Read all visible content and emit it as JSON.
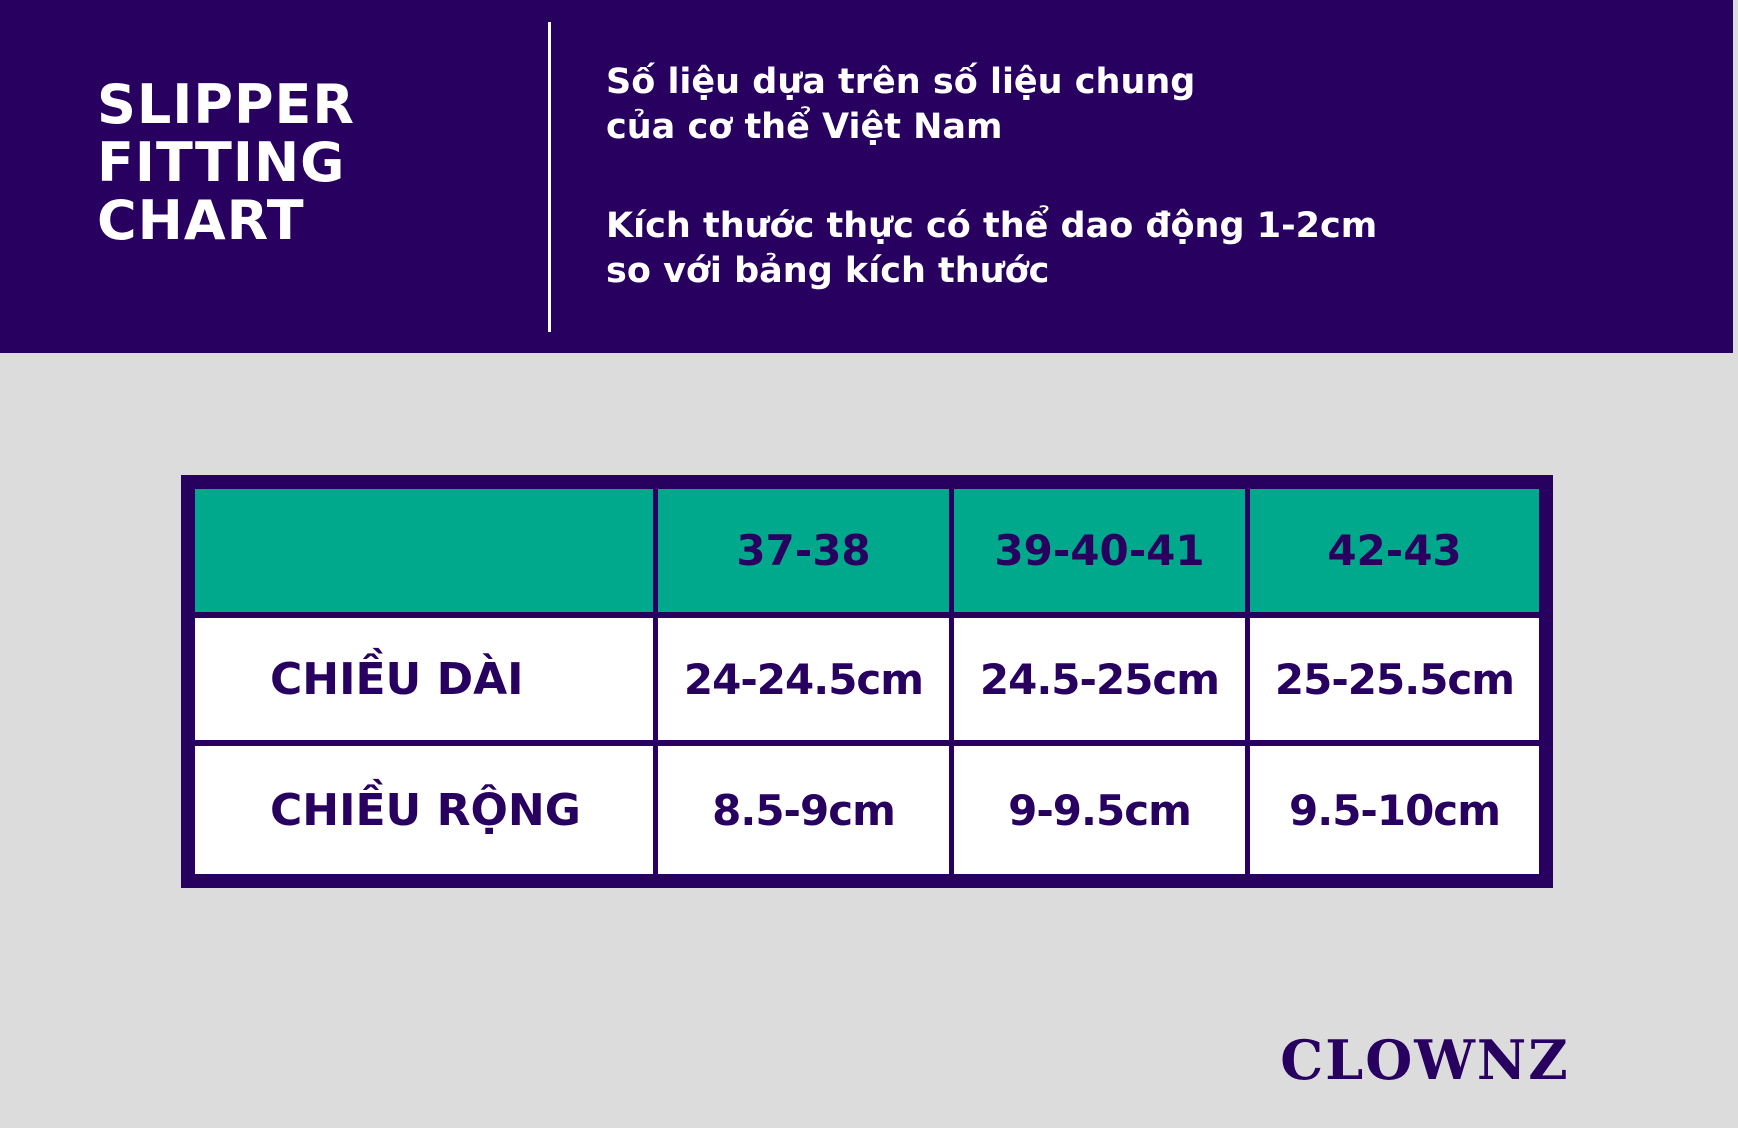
{
  "header": {
    "title_lines": [
      "SLIPPER",
      "FITTING",
      "CHART"
    ],
    "notes": [
      [
        "Số liệu dựa trên số liệu chung",
        "của cơ thể Việt Nam"
      ],
      [
        "Kích thước thực có thể dao động 1-2cm",
        "so với bảng kích thước"
      ]
    ]
  },
  "table": {
    "corner": "",
    "sizes": [
      "37-38",
      "39-40-41",
      "42-43"
    ],
    "rows": [
      {
        "label": "CHIỀU DÀI",
        "values": [
          "24-24.5cm",
          "24.5-25cm",
          "25-25.5cm"
        ]
      },
      {
        "label": "CHIỀU RỘNG",
        "values": [
          "8.5-9cm",
          "9-9.5cm",
          "9.5-10cm"
        ]
      }
    ]
  },
  "brand": "CLOWNZ",
  "colors": {
    "primary": "#270060",
    "accent": "#00a98b",
    "background": "#dcdcdc",
    "cell": "#ffffff"
  }
}
